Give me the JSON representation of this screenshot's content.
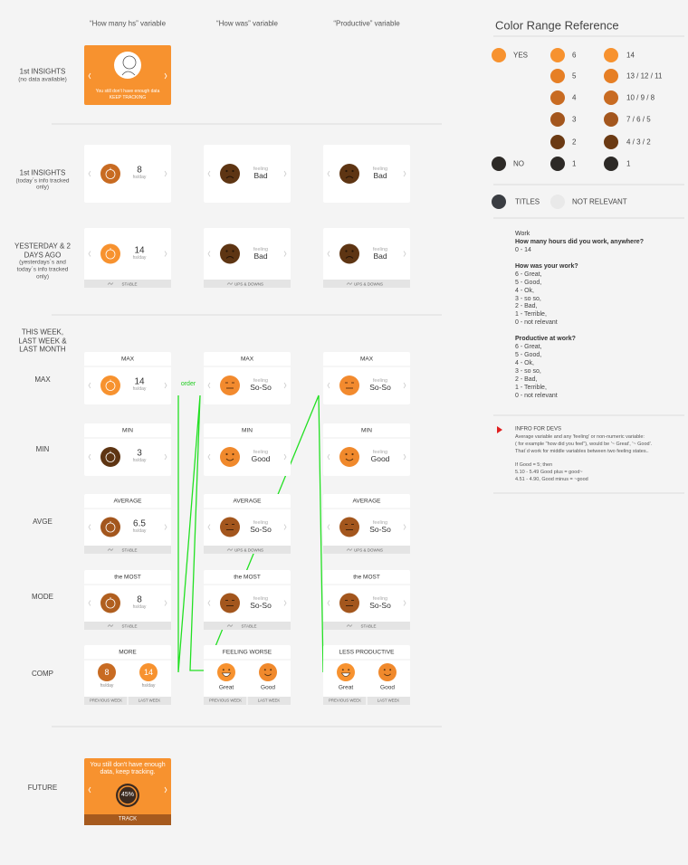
{
  "column_headers": [
    "“How many hs” variable",
    "“How was” variable",
    "“Productive” variable"
  ],
  "annotation": "order",
  "rows": [
    {
      "label": "1st INSIGHTS",
      "note": "(no data available)",
      "cards": [
        {
          "kind": "promo",
          "text": "You still don’t have enough data",
          "action": "KEEP TRACKING",
          "color": "#f7922f"
        }
      ]
    },
    {
      "label": "1st INSIGHTS",
      "note": "(today´s info tracked only)",
      "cards": [
        {
          "kind": "hours",
          "value": "8",
          "unit": "hs/day",
          "color": "#c86b22"
        },
        {
          "kind": "feeling",
          "caption": "feeling",
          "value": "Bad",
          "face": "sad",
          "color": "#5e3513"
        },
        {
          "kind": "feeling",
          "caption": "feeling",
          "value": "Bad",
          "face": "sad",
          "color": "#5e3513"
        }
      ]
    },
    {
      "label": "YESTERDAY & 2 DAYS AGO",
      "note": "(yesterdays´s and today´s info tracked only)",
      "cards": [
        {
          "kind": "hours",
          "value": "14",
          "unit": "hs/day",
          "color": "#f7922f",
          "footer": "STABLE"
        },
        {
          "kind": "feeling",
          "caption": "feeling",
          "value": "Bad",
          "face": "sad",
          "color": "#5e3513",
          "footer": "UPS & DOWNS"
        },
        {
          "kind": "feeling",
          "caption": "feeling",
          "value": "Bad",
          "face": "sad",
          "color": "#5e3513",
          "footer": "UPS & DOWNS"
        }
      ]
    },
    {
      "label": "THIS WEEK, LAST WEEK & LAST MONTH"
    },
    {
      "label": "MAX",
      "cards": [
        {
          "kind": "hours",
          "title": "MAX",
          "value": "14",
          "unit": "hs/day",
          "color": "#f7922f"
        },
        {
          "kind": "feeling",
          "title": "MAX",
          "caption": "feeling",
          "value": "So-So",
          "face": "meh",
          "color": "#f28a2e"
        },
        {
          "kind": "feeling",
          "title": "MAX",
          "caption": "feeling",
          "value": "So-So",
          "face": "meh",
          "color": "#f28a2e"
        }
      ]
    },
    {
      "label": "MIN",
      "cards": [
        {
          "kind": "hours",
          "title": "MIN",
          "value": "3",
          "unit": "hs/day",
          "color": "#5e3513"
        },
        {
          "kind": "feeling",
          "title": "MIN",
          "caption": "feeling",
          "value": "Good",
          "face": "smile",
          "color": "#f0892c"
        },
        {
          "kind": "feeling",
          "title": "MIN",
          "caption": "feeling",
          "value": "Good",
          "face": "smile",
          "color": "#f0892c"
        }
      ]
    },
    {
      "label": "AVGE",
      "cards": [
        {
          "kind": "hours",
          "title": "AVERAGE",
          "value": "6.5",
          "unit": "hs/day",
          "color": "#a3561d",
          "footer": "STABLE"
        },
        {
          "kind": "feeling",
          "title": "AVERAGE",
          "caption": "feeling",
          "value": "So-So",
          "face": "meh",
          "color": "#a3561d",
          "footer": "UPS & DOWNS"
        },
        {
          "kind": "feeling",
          "title": "AVERAGE",
          "caption": "feeling",
          "value": "So-So",
          "face": "meh",
          "color": "#a3561d",
          "footer": "UPS & DOWNS"
        }
      ]
    },
    {
      "label": "MODE",
      "cards": [
        {
          "kind": "hours",
          "title": "the MOST",
          "value": "8",
          "unit": "hs/day",
          "color": "#b05f1f",
          "footer": "STABLE"
        },
        {
          "kind": "feeling",
          "title": "the MOST",
          "caption": "feeling",
          "value": "So-So",
          "face": "meh",
          "color": "#a3561d",
          "footer": "STABLE"
        },
        {
          "kind": "feeling",
          "title": "the MOST",
          "caption": "feeling",
          "value": "So-So",
          "face": "meh",
          "color": "#a3561d",
          "footer": "STABLE"
        }
      ]
    },
    {
      "label": "COMP",
      "cards": [
        {
          "kind": "comp",
          "title": "MORE",
          "items": [
            {
              "value": "8",
              "label": "hs/day",
              "color": "#c86b22"
            },
            {
              "value": "14",
              "label": "hs/day",
              "color": "#f7922f"
            }
          ],
          "footers": [
            "PREVIOUS WEEK",
            "LAST WEEK"
          ]
        },
        {
          "kind": "comp",
          "title": "FEELING WORSE",
          "items": [
            {
              "face": "big",
              "label": "Great",
              "color": "#f7922f"
            },
            {
              "face": "smile",
              "label": "Good",
              "color": "#f0892c"
            }
          ],
          "footers": [
            "PREVIOUS WEEK",
            "LAST WEEK"
          ]
        },
        {
          "kind": "comp",
          "title": "LESS PRODUCTIVE",
          "items": [
            {
              "face": "big",
              "label": "Great",
              "color": "#f7922f"
            },
            {
              "face": "smile",
              "label": "Good",
              "color": "#f0892c"
            }
          ],
          "footers": [
            "PREVIOUS WEEK",
            "LAST WEEK"
          ]
        }
      ]
    },
    {
      "label": "FUTURE",
      "cards": [
        {
          "kind": "future",
          "text": "You still don't have enough data, keep tracking.",
          "value": "45%",
          "action": "TRACK",
          "color": "#f7922f"
        }
      ]
    }
  ],
  "color_reference": {
    "title": "Color Range Reference",
    "yes_no": [
      {
        "label": "YES",
        "color": "#f7922f"
      },
      {
        "label": "NO",
        "color": "#2d2a27"
      }
    ],
    "scale": [
      {
        "label": "6",
        "color": "#f7922f"
      },
      {
        "label": "5",
        "color": "#e67f25"
      },
      {
        "label": "4",
        "color": "#c86b22"
      },
      {
        "label": "3",
        "color": "#a3561d"
      },
      {
        "label": "2",
        "color": "#6b3a13"
      },
      {
        "label": "1",
        "color": "#2d2a27"
      }
    ],
    "hours": [
      {
        "label": "14",
        "color": "#f7922f"
      },
      {
        "label": "13 / 12 / 11",
        "color": "#e67f25"
      },
      {
        "label": "10 / 9 / 8",
        "color": "#c86b22"
      },
      {
        "label": "7 / 6 / 5",
        "color": "#a3561d"
      },
      {
        "label": "4 / 3 / 2",
        "color": "#6b3a13"
      },
      {
        "label": "1",
        "color": "#2d2a27"
      }
    ],
    "titles": {
      "label": "TITLES",
      "color": "#3a3d42"
    },
    "not_relevant": {
      "label": "NOT RELEVANT",
      "color": "#e9e9e9"
    }
  },
  "questionnaire": {
    "topic": "Work",
    "questions": [
      {
        "q": "How many hours did you work, anywhere?",
        "answers": [
          "0 - 14"
        ]
      },
      {
        "q": "How was your work?",
        "answers": [
          "6 - Great,",
          "5 - Good,",
          "4 - Ok,",
          "3 - so so,",
          "2 - Bad,",
          "1 - Terrible,",
          "0 - not relevant"
        ]
      },
      {
        "q": "Productive at work?",
        "answers": [
          "6 - Great,",
          "5 - Good,",
          "4 - Ok,",
          "3 - so so,",
          "2 - Bad,",
          "1 - Terrible,",
          "0 - not relevant"
        ]
      }
    ]
  },
  "dev_info": {
    "title": "INFRO FOR DEVS",
    "paragraphs": [
      [
        "Average variable and any 'feeling' or non-numeric variable:",
        "( for example \"how did you feel\"), would be '~ Great', '~ Good'.",
        "That´d work for middle variables between two feeling states.."
      ],
      [
        "If Good = 5; then",
        "5.10 - 5.49 Good plus = good~",
        "4.51 - 4.90, Good minus = ~good"
      ]
    ]
  }
}
